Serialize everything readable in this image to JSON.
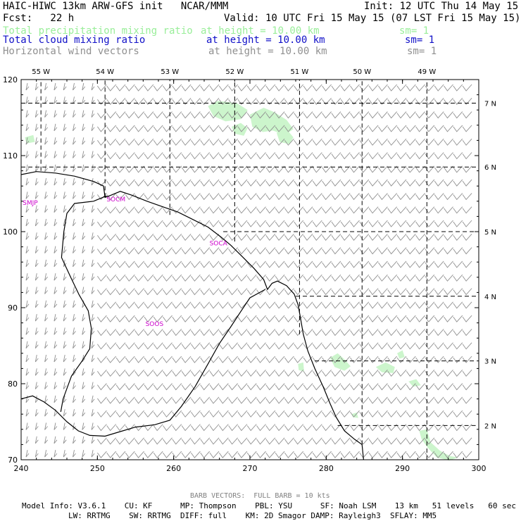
{
  "header": {
    "title": "HAIC-HIWC 13km ARW-GFS init   NCAR/MMM",
    "init": "Init: 12 UTC Thu 14 May 15",
    "fcst": "Fcst:   22 h",
    "valid": "Valid: 10 UTC Fri 15 May 15 (07 LST Fri 15 May 15)"
  },
  "legend": [
    {
      "name": "Total precipitation mixing ratio",
      "height": "at height = 10.00 km",
      "sm": "sm= 1",
      "color": "#99ee99"
    },
    {
      "name": "Total cloud mixing ratio",
      "height": "at height = 10.00 km",
      "sm": "sm= 1",
      "color": "#1010c8"
    },
    {
      "name": "Horizontal wind vectors",
      "height": "at height = 10.00 km",
      "sm": "sm= 1",
      "color": "#909090"
    }
  ],
  "footer": {
    "barb": "BARB VECTORS:  FULL BARB = 10 kts",
    "line1": "Model Info: V3.6.1    CU: KF      MP: Thompson    PBL: YSU      SF: Noah LSM    13 km   51 levels   60 sec",
    "line2": "LW: RRTMG    SW: RRTMG  DIFF: full    KM: 2D Smagor DAMP: Rayleigh3  SFLAY: MM5"
  },
  "colors": {
    "coast": "#000000",
    "station": "#cc00cc",
    "precip": "#ccf5cc",
    "barb": "#909090"
  },
  "stations": [
    {
      "label": "SMJP",
      "x": 240.2,
      "y": 103.5
    },
    {
      "label": "SOCM",
      "x": 251.2,
      "y": 104.0
    },
    {
      "label": "SOCA",
      "x": 264.7,
      "y": 98.2
    },
    {
      "label": "SOOS",
      "x": 256.3,
      "y": 87.6
    }
  ],
  "chart_data": {
    "type": "map",
    "xlim": [
      240,
      300
    ],
    "ylim": [
      70,
      120
    ],
    "xticks": [
      240,
      250,
      260,
      270,
      280,
      290,
      300
    ],
    "yticks": [
      70,
      80,
      90,
      100,
      110,
      120
    ],
    "lon_labels": [
      "55 W",
      "54 W",
      "53 W",
      "52 W",
      "51 W",
      "50 W",
      "49 W"
    ],
    "lat_labels": [
      "7 N",
      "6 N",
      "5 N",
      "4 N",
      "3 N",
      "2 N"
    ],
    "lon_lines": [
      {
        "label": "55 W",
        "x": 242.6,
        "y0": 108,
        "y1": 120
      },
      {
        "label": "54 W",
        "x": 251.0,
        "y0": 104.5,
        "y1": 120
      },
      {
        "label": "53 W",
        "x": 259.5,
        "y0": 102.2,
        "y1": 120
      },
      {
        "label": "52 W",
        "x": 268.0,
        "y0": 98.7,
        "y1": 120
      },
      {
        "label": "51 W",
        "x": 276.5,
        "y0": 86.5,
        "y1": 120
      },
      {
        "label": "50 W",
        "x": 284.7,
        "y0": 72.0,
        "y1": 120
      },
      {
        "label": "49 W",
        "x": 293.2,
        "y0": 70,
        "y1": 120
      }
    ],
    "lat_lines": [
      {
        "label": "7 N",
        "y": 116.9,
        "x0": 240,
        "x1": 300
      },
      {
        "label": "6 N",
        "y": 108.5,
        "x0": 240,
        "x1": 300
      },
      {
        "label": "5 N",
        "y": 100.0,
        "x0": 266.5,
        "x1": 300
      },
      {
        "label": "4 N",
        "y": 91.5,
        "x0": 276.0,
        "x1": 300
      },
      {
        "label": "3 N",
        "y": 83.0,
        "x0": 278.5,
        "x1": 300
      },
      {
        "label": "2 N",
        "y": 74.5,
        "x0": 281.5,
        "x1": 300
      }
    ],
    "coastline": [
      [
        [
          240,
          107.5
        ],
        [
          242,
          107.9
        ],
        [
          244.5,
          107.7
        ],
        [
          247,
          107.3
        ],
        [
          249.5,
          106.6
        ],
        [
          250.8,
          106
        ],
        [
          251,
          104.5
        ],
        [
          251.8,
          104.8
        ],
        [
          253,
          105.3
        ],
        [
          254.5,
          104.8
        ],
        [
          256.5,
          104
        ],
        [
          258.5,
          103.3
        ],
        [
          260.5,
          102.6
        ],
        [
          262.5,
          101.6
        ],
        [
          264.5,
          100.6
        ],
        [
          266.2,
          99.3
        ],
        [
          267.5,
          98.2
        ],
        [
          269,
          96.7
        ],
        [
          270.5,
          95.2
        ],
        [
          271.8,
          93.7
        ],
        [
          272.3,
          92.4
        ],
        [
          272.9,
          93.2
        ],
        [
          273.6,
          93.5
        ],
        [
          274.8,
          92.9
        ],
        [
          275.8,
          91.8
        ],
        [
          276.3,
          90.4
        ],
        [
          276.6,
          88.8
        ],
        [
          277,
          86.5
        ],
        [
          277.6,
          84.3
        ],
        [
          278.5,
          82.0
        ],
        [
          279.6,
          79.6
        ],
        [
          280.5,
          77.4
        ],
        [
          281.3,
          75.6
        ],
        [
          282.4,
          73.8
        ],
        [
          283.7,
          72.7
        ],
        [
          284.7,
          72.0
        ],
        [
          284.9,
          70
        ]
      ],
      [
        [
          240,
          78.0
        ],
        [
          241.5,
          78.4
        ],
        [
          243,
          77.6
        ],
        [
          244.5,
          76.5
        ],
        [
          246,
          75.0
        ],
        [
          247.5,
          73.8
        ],
        [
          249,
          73.2
        ],
        [
          251,
          73.1
        ],
        [
          253,
          73.7
        ],
        [
          255,
          74.3
        ],
        [
          257.5,
          74.6
        ],
        [
          259.5,
          75.2
        ],
        [
          261,
          77.0
        ],
        [
          262.8,
          79.6
        ],
        [
          264.5,
          82.6
        ],
        [
          266,
          85.3
        ],
        [
          267.5,
          87.5
        ],
        [
          268.8,
          89.5
        ],
        [
          270,
          91.3
        ],
        [
          272,
          92.4
        ]
      ],
      [
        [
          251.2,
          104.7
        ],
        [
          249.5,
          104.0
        ],
        [
          247,
          103.7
        ],
        [
          246,
          102.4
        ],
        [
          245.6,
          100
        ],
        [
          245.3,
          96.6
        ],
        [
          246.5,
          94.0
        ],
        [
          247.6,
          91.7
        ],
        [
          248.8,
          89.6
        ],
        [
          249.2,
          87.3
        ],
        [
          249.0,
          84.6
        ],
        [
          248,
          83.0
        ],
        [
          246.6,
          81.0
        ],
        [
          245.5,
          78.0
        ],
        [
          245.2,
          76.3
        ]
      ]
    ],
    "precip_regions": [
      [
        [
          264.5,
          116.5
        ],
        [
          265.8,
          117.2
        ],
        [
          268.3,
          116.9
        ],
        [
          269.7,
          116.0
        ],
        [
          268.8,
          114.8
        ],
        [
          266.8,
          114.5
        ],
        [
          265.2,
          115.2
        ]
      ],
      [
        [
          270.0,
          115.4
        ],
        [
          271.8,
          116.3
        ],
        [
          273.2,
          115.7
        ],
        [
          274.8,
          114.7
        ],
        [
          275.7,
          113.5
        ],
        [
          274.6,
          112.7
        ],
        [
          273.0,
          113.3
        ],
        [
          271.7,
          113.1
        ],
        [
          270.3,
          113.8
        ]
      ],
      [
        [
          267.6,
          113.8
        ],
        [
          268.8,
          114.3
        ],
        [
          269.7,
          113.6
        ],
        [
          269.2,
          112.6
        ],
        [
          268.0,
          112.9
        ]
      ],
      [
        [
          273.5,
          113.0
        ],
        [
          274.8,
          113.5
        ],
        [
          275.7,
          112.4
        ],
        [
          275.2,
          111.5
        ],
        [
          273.9,
          111.8
        ]
      ],
      [
        [
          240.5,
          112.4
        ],
        [
          241.6,
          112.7
        ],
        [
          241.8,
          111.8
        ],
        [
          240.7,
          111.6
        ]
      ],
      [
        [
          280.5,
          83.4
        ],
        [
          281.5,
          84.0
        ],
        [
          282.4,
          83.2
        ],
        [
          283.2,
          82.3
        ],
        [
          282.4,
          81.7
        ],
        [
          281.1,
          82.2
        ]
      ],
      [
        [
          286.5,
          82.2
        ],
        [
          287.8,
          82.8
        ],
        [
          289.0,
          82.2
        ],
        [
          288.8,
          81.4
        ],
        [
          287.3,
          81.5
        ]
      ],
      [
        [
          276.3,
          82.6
        ],
        [
          277.0,
          82.8
        ],
        [
          277.1,
          81.6
        ],
        [
          276.4,
          81.8
        ]
      ],
      [
        [
          290.8,
          80.3
        ],
        [
          291.8,
          80.6
        ],
        [
          292.4,
          79.8
        ],
        [
          291.4,
          79.6
        ]
      ],
      [
        [
          292.2,
          73.8
        ],
        [
          293.2,
          74.0
        ],
        [
          293.7,
          72.3
        ],
        [
          294.9,
          71.2
        ],
        [
          296.2,
          70.5
        ],
        [
          297.3,
          70.3
        ],
        [
          296.1,
          69.9
        ],
        [
          294.5,
          70.3
        ],
        [
          293.3,
          71.6
        ],
        [
          292.5,
          72.7
        ]
      ],
      [
        [
          289.3,
          84.0
        ],
        [
          290.0,
          84.4
        ],
        [
          290.3,
          83.5
        ],
        [
          289.6,
          83.3
        ]
      ],
      [
        [
          283.3,
          76.0
        ],
        [
          284.0,
          76.2
        ],
        [
          284.2,
          75.5
        ],
        [
          283.5,
          75.6
        ]
      ]
    ]
  }
}
